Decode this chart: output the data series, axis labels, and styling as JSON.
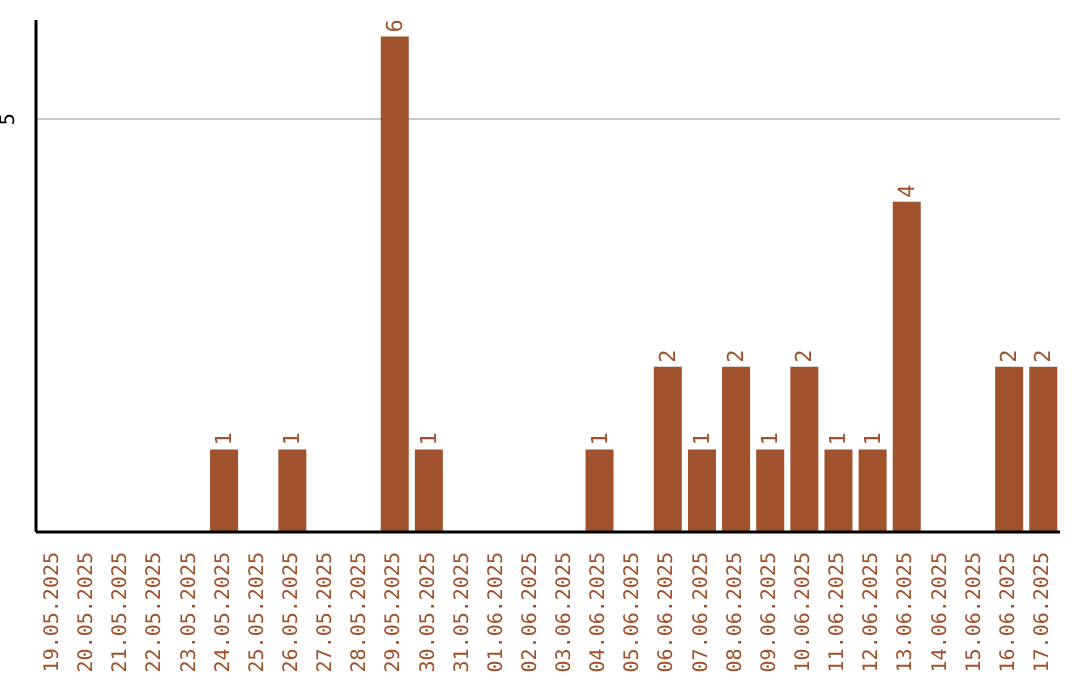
{
  "chart_data": {
    "type": "bar",
    "categories": [
      "19.05.2025",
      "20.05.2025",
      "21.05.2025",
      "22.05.2025",
      "23.05.2025",
      "24.05.2025",
      "25.05.2025",
      "26.05.2025",
      "27.05.2025",
      "28.05.2025",
      "29.05.2025",
      "30.05.2025",
      "31.05.2025",
      "01.06.2025",
      "02.06.2025",
      "03.06.2025",
      "04.06.2025",
      "05.06.2025",
      "06.06.2025",
      "07.06.2025",
      "08.06.2025",
      "09.06.2025",
      "10.06.2025",
      "11.06.2025",
      "12.06.2025",
      "13.06.2025",
      "14.06.2025",
      "15.06.2025",
      "16.06.2025",
      "17.06.2025"
    ],
    "series": [
      {
        "color": "#a0522d",
        "values": [
          0,
          0,
          0,
          0,
          0,
          1,
          0,
          1,
          0,
          0,
          6,
          1,
          0,
          0,
          0,
          0,
          1,
          0,
          2,
          1,
          2,
          1,
          2,
          1,
          1,
          4,
          0,
          0,
          2,
          2
        ]
      }
    ],
    "value_labels": [
      null,
      null,
      null,
      null,
      null,
      "1",
      null,
      "1",
      null,
      null,
      "6",
      "1",
      null,
      null,
      null,
      null,
      "1",
      null,
      "2",
      "1",
      "2",
      "1",
      "2",
      "1",
      "1",
      "4",
      null,
      null,
      "2",
      "2"
    ],
    "ylim": [
      0,
      6.2
    ],
    "yticks": [
      5
    ],
    "grid": "y"
  }
}
